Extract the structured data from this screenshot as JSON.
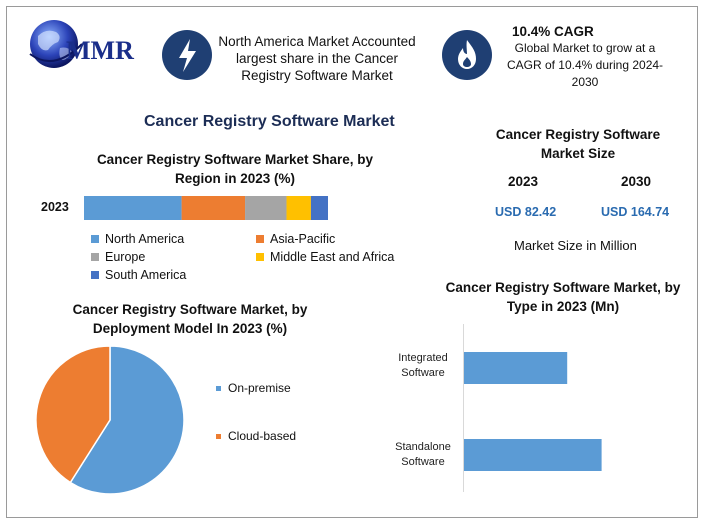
{
  "brand": {
    "name": "MMR"
  },
  "highlights": {
    "north_america": "North America Market Accounted largest share in the Cancer Registry Software Market",
    "cagr_title": "10.4% CAGR",
    "cagr_text": "Global Market to grow at a CAGR of 10.4% during 2024-2030"
  },
  "main_title": "Cancer Registry Software Market",
  "colors": {
    "north_america": "#5b9bd5",
    "asia_pacific": "#ed7d31",
    "europe": "#a5a5a5",
    "mea": "#ffc000",
    "south_america": "#4472c4",
    "icon_bg": "#1f3f73"
  },
  "chart_data": [
    {
      "type": "bar",
      "orientation": "horizontal-stacked",
      "title": "Cancer Registry Software Market Share, by Region in 2023 (%)",
      "categories": [
        "2023"
      ],
      "series": [
        {
          "name": "North America",
          "values": [
            40
          ]
        },
        {
          "name": "Asia-Pacific",
          "values": [
            26
          ]
        },
        {
          "name": "Europe",
          "values": [
            17
          ]
        },
        {
          "name": "Middle East and Africa",
          "values": [
            10
          ]
        },
        {
          "name": "South America",
          "values": [
            7
          ]
        }
      ],
      "legend": "bottom"
    },
    {
      "type": "pie",
      "title": "Cancer Registry Software Market, by Deployment Model In 2023 (%)",
      "labels": [
        "On-premise",
        "Cloud-based"
      ],
      "values": [
        59,
        41
      ],
      "colors": [
        "#5b9bd5",
        "#ed7d31"
      ],
      "legend": "right"
    },
    {
      "type": "bar",
      "orientation": "horizontal",
      "title": "Cancer Registry Software Market, by Type in 2023 (Mn)",
      "categories": [
        "Integrated Software",
        "Standalone Software"
      ],
      "values": [
        36,
        48
      ],
      "xlim": [
        0,
        60
      ],
      "color": "#5b9bd5"
    }
  ],
  "market_size": {
    "title": "Cancer Registry Software Market Size",
    "years": [
      {
        "year": "2023",
        "value": "USD 82.42"
      },
      {
        "year": "2030",
        "value": "USD 164.74"
      }
    ],
    "unit_note": "Market Size in Million"
  }
}
